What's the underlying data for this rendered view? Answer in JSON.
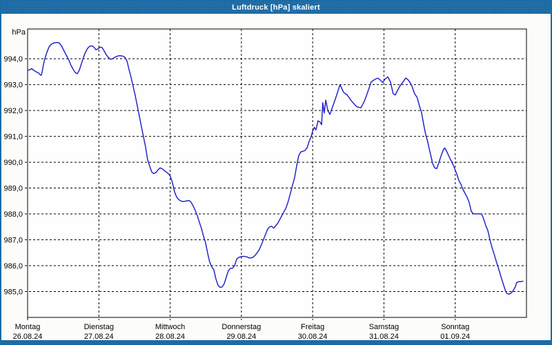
{
  "window": {
    "title": "Luftdruck [hPa] skaliert"
  },
  "colors": {
    "titlebar": "#1d6ba5",
    "window_border": "#1d6ba5",
    "bottom_bar": "#1d6ba5",
    "grid": "#000000",
    "plot_background": "#fefefe",
    "chart_background": "#fcfdfa",
    "line": "#2525c8",
    "title_text": "#ffffff"
  },
  "chart_data": {
    "type": "line",
    "title": "Luftdruck [hPa] skaliert",
    "unit_label": "hPa",
    "xlabel": "",
    "ylabel": "hPa",
    "ylim": [
      984.0,
      995.15
    ],
    "xlim_hours": [
      0,
      168
    ],
    "grid": "dashed",
    "legend": "none",
    "y_ticks": [
      {
        "value": 994,
        "label": "994,0"
      },
      {
        "value": 993,
        "label": "993,0"
      },
      {
        "value": 992,
        "label": "992,0"
      },
      {
        "value": 991,
        "label": "991,0"
      },
      {
        "value": 990,
        "label": "990,0"
      },
      {
        "value": 989,
        "label": "989,0"
      },
      {
        "value": 988,
        "label": "988,0"
      },
      {
        "value": 987,
        "label": "987,0"
      },
      {
        "value": 986,
        "label": "986,0"
      },
      {
        "value": 985,
        "label": "985,0"
      }
    ],
    "x_ticks": [
      {
        "hour": 0,
        "day": "Montag",
        "date": "26.08.24"
      },
      {
        "hour": 24,
        "day": "Dienstag",
        "date": "27.08.24"
      },
      {
        "hour": 48,
        "day": "Mittwoch",
        "date": "28.08.24"
      },
      {
        "hour": 72,
        "day": "Donnerstag",
        "date": "29.08.24"
      },
      {
        "hour": 96,
        "day": "Freitag",
        "date": "30.08.24"
      },
      {
        "hour": 120,
        "day": "Samstag",
        "date": "31.08.24"
      },
      {
        "hour": 144,
        "day": "Sonntag",
        "date": "01.09.24"
      }
    ],
    "series": [
      {
        "name": "Luftdruck",
        "color": "#2525c8",
        "points": [
          [
            0,
            993.55
          ],
          [
            0.7,
            993.57
          ],
          [
            1.4,
            993.62
          ],
          [
            2.1,
            993.55
          ],
          [
            2.8,
            993.5
          ],
          [
            3.7,
            993.45
          ],
          [
            4.2,
            993.38
          ],
          [
            4.6,
            993.36
          ],
          [
            4.9,
            993.5
          ],
          [
            5.3,
            993.75
          ],
          [
            5.8,
            994.0
          ],
          [
            6.5,
            994.25
          ],
          [
            7.2,
            994.45
          ],
          [
            7.9,
            994.55
          ],
          [
            8.6,
            994.6
          ],
          [
            9.3,
            994.62
          ],
          [
            10,
            994.63
          ],
          [
            10.7,
            994.6
          ],
          [
            11.4,
            994.5
          ],
          [
            12.3,
            994.3
          ],
          [
            13.2,
            994.1
          ],
          [
            13.9,
            993.95
          ],
          [
            14.6,
            993.75
          ],
          [
            15.3,
            993.6
          ],
          [
            16,
            993.47
          ],
          [
            16.7,
            993.42
          ],
          [
            17.4,
            993.55
          ],
          [
            18.1,
            993.8
          ],
          [
            18.8,
            994.05
          ],
          [
            19.5,
            994.25
          ],
          [
            20.2,
            994.4
          ],
          [
            20.9,
            994.48
          ],
          [
            21.6,
            994.5
          ],
          [
            22.3,
            994.45
          ],
          [
            23,
            994.35
          ],
          [
            23.7,
            994.38
          ],
          [
            24.4,
            994.45
          ],
          [
            25.1,
            994.43
          ],
          [
            25.8,
            994.3
          ],
          [
            26.5,
            994.15
          ],
          [
            27.2,
            994.05
          ],
          [
            27.9,
            993.98
          ],
          [
            28.6,
            994.0
          ],
          [
            29.3,
            994.05
          ],
          [
            30.2,
            994.1
          ],
          [
            31.1,
            994.12
          ],
          [
            32.1,
            994.1
          ],
          [
            32.8,
            994.05
          ],
          [
            33.5,
            993.9
          ],
          [
            34.1,
            993.6
          ],
          [
            34.8,
            993.3
          ],
          [
            35.5,
            992.95
          ],
          [
            36.2,
            992.6
          ],
          [
            36.9,
            992.2
          ],
          [
            37.6,
            991.8
          ],
          [
            38.3,
            991.4
          ],
          [
            39,
            991.0
          ],
          [
            39.7,
            990.6
          ],
          [
            40.4,
            990.1
          ],
          [
            41.1,
            989.85
          ],
          [
            41.8,
            989.62
          ],
          [
            42.5,
            989.56
          ],
          [
            43.2,
            989.6
          ],
          [
            43.9,
            989.7
          ],
          [
            44.6,
            989.78
          ],
          [
            45.3,
            989.75
          ],
          [
            46,
            989.68
          ],
          [
            46.7,
            989.62
          ],
          [
            47.4,
            989.56
          ],
          [
            48.1,
            989.45
          ],
          [
            48.8,
            989.2
          ],
          [
            49.5,
            988.85
          ],
          [
            50.2,
            988.65
          ],
          [
            50.9,
            988.55
          ],
          [
            51.6,
            988.5
          ],
          [
            52.5,
            988.48
          ],
          [
            53.4,
            988.5
          ],
          [
            54.4,
            988.52
          ],
          [
            55.1,
            988.45
          ],
          [
            55.8,
            988.3
          ],
          [
            56.4,
            988.15
          ],
          [
            57.1,
            987.95
          ],
          [
            57.8,
            987.7
          ],
          [
            58.5,
            987.45
          ],
          [
            59.2,
            987.15
          ],
          [
            59.9,
            986.9
          ],
          [
            60.6,
            986.5
          ],
          [
            61.3,
            986.15
          ],
          [
            62,
            985.95
          ],
          [
            62.7,
            985.85
          ],
          [
            63.4,
            985.5
          ],
          [
            64.1,
            985.25
          ],
          [
            64.8,
            985.16
          ],
          [
            65.5,
            985.18
          ],
          [
            66.2,
            985.3
          ],
          [
            66.9,
            985.55
          ],
          [
            67.6,
            985.8
          ],
          [
            68.3,
            985.9
          ],
          [
            69,
            985.9
          ],
          [
            69.7,
            986.0
          ],
          [
            70.4,
            986.25
          ],
          [
            71.1,
            986.32
          ],
          [
            72,
            986.35
          ],
          [
            72.9,
            986.36
          ],
          [
            73.9,
            986.34
          ],
          [
            74.6,
            986.3
          ],
          [
            75.3,
            986.3
          ],
          [
            76,
            986.33
          ],
          [
            76.6,
            986.4
          ],
          [
            77.3,
            986.5
          ],
          [
            78,
            986.62
          ],
          [
            78.7,
            986.8
          ],
          [
            79.4,
            987.0
          ],
          [
            80.1,
            987.2
          ],
          [
            80.8,
            987.4
          ],
          [
            81.5,
            987.5
          ],
          [
            82.2,
            987.52
          ],
          [
            82.9,
            987.45
          ],
          [
            83.6,
            987.55
          ],
          [
            84.3,
            987.65
          ],
          [
            85,
            987.8
          ],
          [
            85.7,
            987.95
          ],
          [
            86.4,
            988.1
          ],
          [
            87.1,
            988.25
          ],
          [
            87.8,
            988.5
          ],
          [
            88.5,
            988.8
          ],
          [
            89.2,
            989.1
          ],
          [
            89.9,
            989.4
          ],
          [
            90.6,
            989.85
          ],
          [
            91.3,
            990.25
          ],
          [
            92,
            990.4
          ],
          [
            92.7,
            990.42
          ],
          [
            93.4,
            990.45
          ],
          [
            94.1,
            990.55
          ],
          [
            94.8,
            990.8
          ],
          [
            95.5,
            991.0
          ],
          [
            96,
            991.2
          ],
          [
            96.6,
            991.35
          ],
          [
            97.1,
            991.25
          ],
          [
            97.8,
            991.6
          ],
          [
            98.5,
            991.55
          ],
          [
            99,
            991.45
          ],
          [
            99.4,
            992.3
          ],
          [
            99.9,
            991.9
          ],
          [
            100.4,
            992.4
          ],
          [
            101.1,
            992.0
          ],
          [
            101.8,
            991.85
          ],
          [
            102.9,
            992.2
          ],
          [
            104.1,
            992.6
          ],
          [
            105.2,
            993.0
          ],
          [
            106.4,
            992.7
          ],
          [
            107.6,
            992.6
          ],
          [
            109.2,
            992.35
          ],
          [
            110.8,
            992.15
          ],
          [
            112.2,
            992.1
          ],
          [
            113.4,
            992.35
          ],
          [
            114.5,
            992.7
          ],
          [
            115.7,
            993.1
          ],
          [
            116.9,
            993.2
          ],
          [
            118,
            993.25
          ],
          [
            119,
            993.15
          ],
          [
            119.6,
            993.08
          ],
          [
            120.3,
            993.2
          ],
          [
            121.3,
            993.3
          ],
          [
            122.2,
            993.1
          ],
          [
            123.1,
            992.65
          ],
          [
            123.8,
            992.6
          ],
          [
            124.7,
            992.8
          ],
          [
            125.4,
            992.95
          ],
          [
            126.4,
            993.1
          ],
          [
            127.3,
            993.25
          ],
          [
            128,
            993.2
          ],
          [
            128.7,
            993.1
          ],
          [
            129.4,
            992.95
          ],
          [
            130.3,
            992.65
          ],
          [
            131.2,
            992.5
          ],
          [
            131.9,
            992.2
          ],
          [
            132.6,
            991.95
          ],
          [
            133.3,
            991.5
          ],
          [
            134,
            991.1
          ],
          [
            134.7,
            990.8
          ],
          [
            135.7,
            990.3
          ],
          [
            136.4,
            989.95
          ],
          [
            137.1,
            989.78
          ],
          [
            137.8,
            989.75
          ],
          [
            138.4,
            989.95
          ],
          [
            139.4,
            990.3
          ],
          [
            140.1,
            990.5
          ],
          [
            140.5,
            990.55
          ],
          [
            141.2,
            990.4
          ],
          [
            142.2,
            990.15
          ],
          [
            143.1,
            989.95
          ],
          [
            143.8,
            989.75
          ],
          [
            144.5,
            989.55
          ],
          [
            145.2,
            989.3
          ],
          [
            145.9,
            989.15
          ],
          [
            146.6,
            988.95
          ],
          [
            147.3,
            988.8
          ],
          [
            148,
            988.65
          ],
          [
            148.7,
            988.45
          ],
          [
            149.4,
            988.1
          ],
          [
            150.1,
            988.0
          ],
          [
            151,
            988.0
          ],
          [
            151.9,
            988.0
          ],
          [
            152.9,
            988.0
          ],
          [
            153.6,
            987.8
          ],
          [
            154.3,
            987.55
          ],
          [
            155,
            987.35
          ],
          [
            155.7,
            987.0
          ],
          [
            156.4,
            986.7
          ],
          [
            157.1,
            986.45
          ],
          [
            158,
            986.1
          ],
          [
            158.7,
            985.85
          ],
          [
            159.6,
            985.5
          ],
          [
            160.3,
            985.25
          ],
          [
            161,
            985.0
          ],
          [
            161.5,
            984.92
          ],
          [
            162.2,
            984.9
          ],
          [
            162.9,
            984.95
          ],
          [
            163.6,
            985.05
          ],
          [
            164.3,
            985.2
          ],
          [
            164.7,
            985.35
          ],
          [
            165.4,
            985.38
          ],
          [
            166.1,
            985.38
          ],
          [
            166.8,
            985.4
          ]
        ]
      }
    ]
  }
}
